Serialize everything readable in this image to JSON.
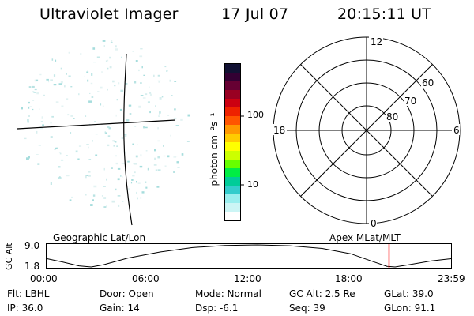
{
  "header": {
    "instrument": "Ultraviolet Imager",
    "date": "17 Jul 07",
    "time": "20:15:11 UT"
  },
  "colorbar": {
    "unit": "photon cm⁻²s⁻¹",
    "ticks": [
      "100",
      "10"
    ],
    "colors": [
      "#111133",
      "#330033",
      "#660033",
      "#990022",
      "#cc0011",
      "#ee2200",
      "#ff5500",
      "#ff9900",
      "#ffcc00",
      "#ffff00",
      "#ccff00",
      "#66ff00",
      "#00ee44",
      "#00cc99",
      "#33cccc",
      "#99eeee",
      "#ccf5f5",
      "#ffffff"
    ]
  },
  "polar_plot": {
    "mlt_labels": [
      "12",
      "18",
      "6",
      "0"
    ],
    "lat_labels": [
      "60",
      "70",
      "80"
    ]
  },
  "timeline": {
    "left_label": "Geographic Lat/Lon",
    "right_label": "Apex MLat/MLT",
    "y_axis_label": "GC Alt",
    "y_ticks": [
      "9.0",
      "1.8"
    ],
    "x_ticks": [
      "00:00",
      "06:00",
      "12:00",
      "18:00",
      "23:59"
    ],
    "marker_color": "#ff0000",
    "current_time_fraction": 0.845
  },
  "info": {
    "flt": "Flt: LBHL",
    "ip": "IP: 36.0",
    "door": "Door: Open",
    "gain": "Gain: 14",
    "mode": "Mode: Normal",
    "dsp": "Dsp:   -6.1",
    "gc_alt": "GC Alt: 2.5 Re",
    "seq": "Seq: 39",
    "glat": "GLat:  39.0",
    "glon": "GLon:  91.1"
  }
}
